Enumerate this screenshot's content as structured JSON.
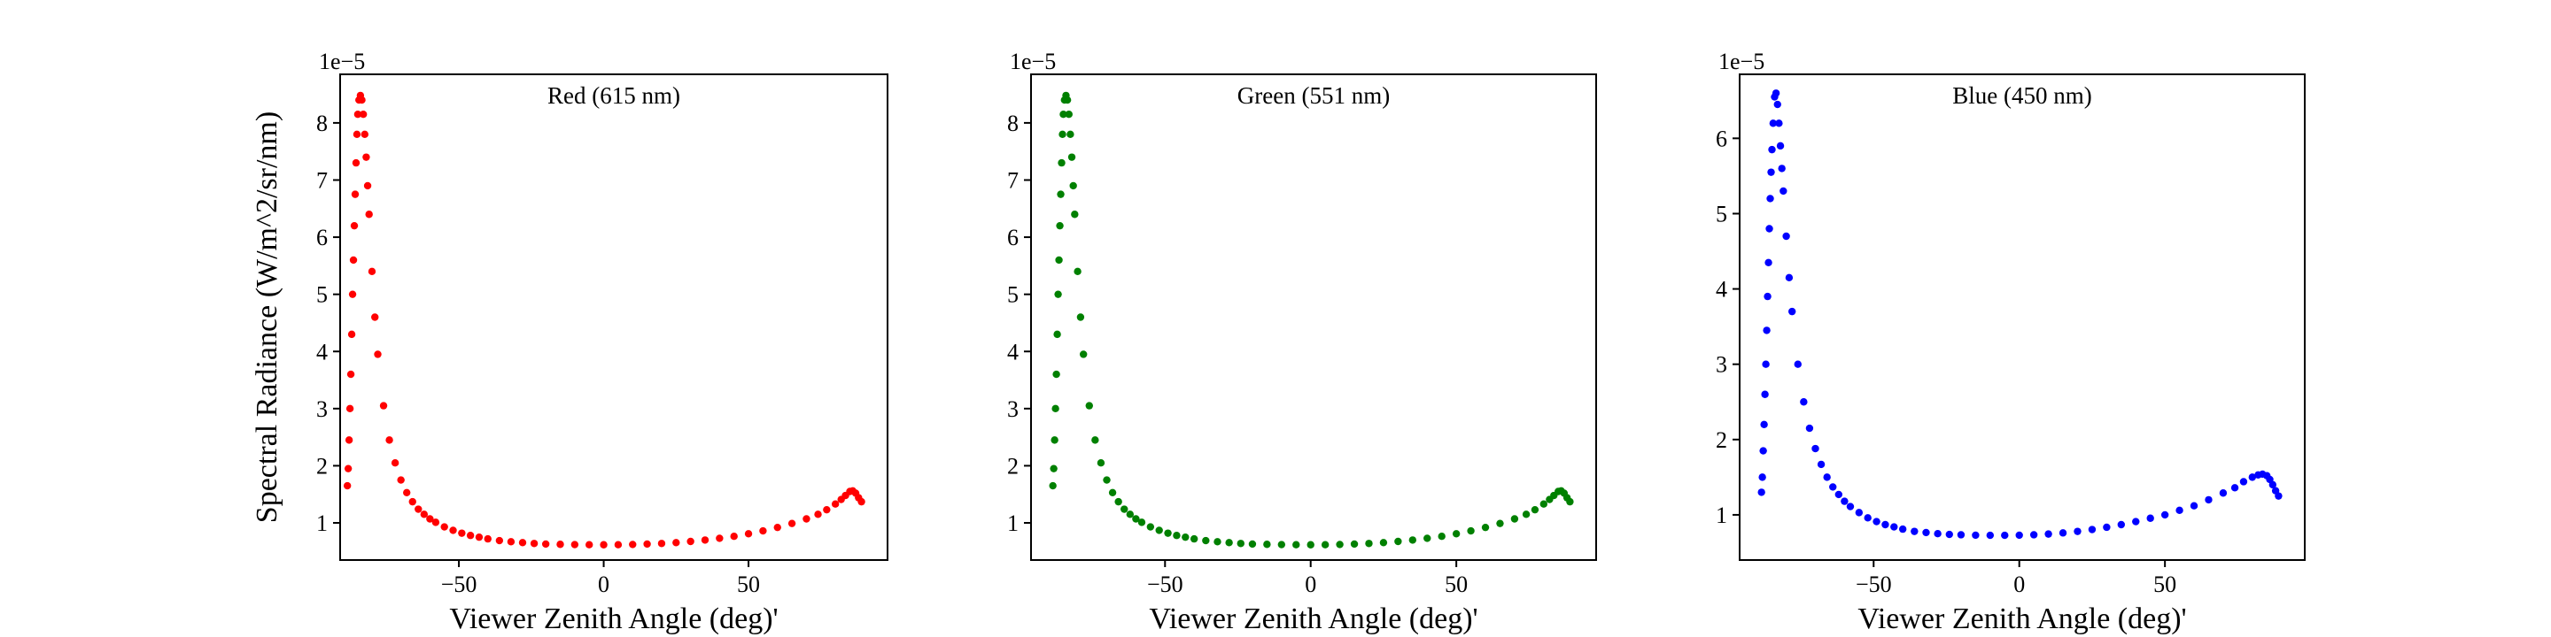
{
  "chart_data": [
    {
      "type": "scatter",
      "title": "Red (615 nm)",
      "xlabel": "Viewer Zenith Angle (deg)'",
      "ylabel": "Spectral Radiance (W/m^2/sr/nm)",
      "y_offset_label": "1e−5",
      "color": "#ff0000",
      "xlim": [
        -91,
        98
      ],
      "ylim": [
        0.35,
        8.85
      ],
      "xticks": [
        -50,
        0,
        50
      ],
      "xtick_labels": [
        "−50",
        "0",
        "50"
      ],
      "yticks": [
        1,
        2,
        3,
        4,
        5,
        6,
        7,
        8
      ],
      "ytick_labels": [
        "1",
        "2",
        "3",
        "4",
        "5",
        "6",
        "7",
        "8"
      ],
      "series": [
        {
          "x": [
            -88.5,
            -88.2,
            -87.9,
            -87.6,
            -87.3,
            -87.0,
            -86.7,
            -86.4,
            -86.1,
            -85.8,
            -85.5,
            -85.2,
            -84.9,
            -84.5,
            -84.0,
            -83.5,
            -83.0,
            -82.5,
            -82.0,
            -81.5,
            -81.0,
            -80.0,
            -79.0,
            -78.0,
            -76.0,
            -74.0,
            -72.0,
            -70.0,
            -68.0,
            -66.0,
            -64.0,
            -62.0,
            -60.0,
            -58.0,
            -55.0,
            -52.0,
            -49.0,
            -46.0,
            -43.0,
            -40.0,
            -36.0,
            -32.0,
            -28.0,
            -24.0,
            -20.0,
            -15.0,
            -10.0,
            -5.0,
            0.0,
            5.0,
            10.0,
            15.0,
            20.0,
            25.0,
            30.0,
            35.0,
            40.0,
            45.0,
            50.0,
            55.0,
            60.0,
            65.0,
            70.0,
            74.0,
            77.0,
            80.0,
            82.0,
            83.5,
            85.0,
            86.0,
            87.0,
            88.0,
            89.0
          ],
          "y": [
            1.65,
            1.95,
            2.45,
            3.0,
            3.6,
            4.3,
            5.0,
            5.6,
            6.2,
            6.75,
            7.3,
            7.8,
            8.15,
            8.4,
            8.48,
            8.4,
            8.15,
            7.8,
            7.4,
            6.9,
            6.4,
            5.4,
            4.6,
            3.95,
            3.05,
            2.45,
            2.05,
            1.75,
            1.53,
            1.37,
            1.24,
            1.15,
            1.07,
            1.01,
            0.93,
            0.87,
            0.82,
            0.78,
            0.75,
            0.72,
            0.69,
            0.67,
            0.655,
            0.64,
            0.63,
            0.625,
            0.62,
            0.618,
            0.617,
            0.618,
            0.622,
            0.63,
            0.64,
            0.655,
            0.675,
            0.7,
            0.73,
            0.765,
            0.81,
            0.86,
            0.92,
            0.99,
            1.07,
            1.15,
            1.23,
            1.33,
            1.41,
            1.48,
            1.55,
            1.56,
            1.52,
            1.44,
            1.37
          ]
        }
      ]
    },
    {
      "type": "scatter",
      "title": "Green (551 nm)",
      "xlabel": "Viewer Zenith Angle (deg)'",
      "ylabel": "",
      "y_offset_label": "1e−5",
      "color": "#008000",
      "xlim": [
        -96,
        98
      ],
      "ylim": [
        0.35,
        8.85
      ],
      "xticks": [
        -50,
        0,
        50
      ],
      "xtick_labels": [
        "−50",
        "0",
        "50"
      ],
      "yticks": [
        1,
        2,
        3,
        4,
        5,
        6,
        7,
        8
      ],
      "ytick_labels": [
        "1",
        "2",
        "3",
        "4",
        "5",
        "6",
        "7",
        "8"
      ],
      "series": [
        {
          "x": [
            -88.5,
            -88.2,
            -87.9,
            -87.6,
            -87.3,
            -87.0,
            -86.7,
            -86.4,
            -86.1,
            -85.8,
            -85.5,
            -85.2,
            -84.9,
            -84.5,
            -84.0,
            -83.5,
            -83.0,
            -82.5,
            -82.0,
            -81.5,
            -81.0,
            -80.0,
            -79.0,
            -78.0,
            -76.0,
            -74.0,
            -72.0,
            -70.0,
            -68.0,
            -66.0,
            -64.0,
            -62.0,
            -60.0,
            -58.0,
            -55.0,
            -52.0,
            -49.0,
            -46.0,
            -43.0,
            -40.0,
            -36.0,
            -32.0,
            -28.0,
            -24.0,
            -20.0,
            -15.0,
            -10.0,
            -5.0,
            0.0,
            5.0,
            10.0,
            15.0,
            20.0,
            25.0,
            30.0,
            35.0,
            40.0,
            45.0,
            50.0,
            55.0,
            60.0,
            65.0,
            70.0,
            74.0,
            77.0,
            80.0,
            82.0,
            83.5,
            85.0,
            86.0,
            87.0,
            88.0,
            89.0
          ],
          "y": [
            1.65,
            1.95,
            2.45,
            3.0,
            3.6,
            4.3,
            5.0,
            5.6,
            6.2,
            6.75,
            7.3,
            7.8,
            8.15,
            8.4,
            8.48,
            8.4,
            8.15,
            7.8,
            7.4,
            6.9,
            6.4,
            5.4,
            4.6,
            3.95,
            3.05,
            2.45,
            2.05,
            1.75,
            1.53,
            1.37,
            1.24,
            1.15,
            1.07,
            1.01,
            0.93,
            0.87,
            0.82,
            0.78,
            0.75,
            0.72,
            0.69,
            0.67,
            0.655,
            0.64,
            0.63,
            0.625,
            0.62,
            0.618,
            0.617,
            0.618,
            0.622,
            0.63,
            0.64,
            0.655,
            0.675,
            0.7,
            0.73,
            0.765,
            0.81,
            0.86,
            0.92,
            0.99,
            1.07,
            1.15,
            1.23,
            1.33,
            1.41,
            1.48,
            1.55,
            1.56,
            1.52,
            1.44,
            1.37
          ]
        }
      ]
    },
    {
      "type": "scatter",
      "title": "Blue (450 nm)",
      "xlabel": "Viewer Zenith Angle (deg)'",
      "ylabel": "",
      "y_offset_label": "1e−5",
      "color": "#0000ff",
      "xlim": [
        -96,
        98
      ],
      "ylim": [
        0.4,
        6.85
      ],
      "xticks": [
        -50,
        0,
        50
      ],
      "xtick_labels": [
        "−50",
        "0",
        "50"
      ],
      "yticks": [
        1,
        2,
        3,
        4,
        5,
        6
      ],
      "ytick_labels": [
        "1",
        "2",
        "3",
        "4",
        "5",
        "6"
      ],
      "series": [
        {
          "x": [
            -88.5,
            -88.2,
            -87.9,
            -87.6,
            -87.3,
            -87.0,
            -86.7,
            -86.4,
            -86.1,
            -85.8,
            -85.5,
            -85.2,
            -84.9,
            -84.5,
            -84.0,
            -83.5,
            -83.0,
            -82.5,
            -82.0,
            -81.5,
            -81.0,
            -80.0,
            -79.0,
            -78.0,
            -76.0,
            -74.0,
            -72.0,
            -70.0,
            -68.0,
            -66.0,
            -64.0,
            -62.0,
            -60.0,
            -58.0,
            -55.0,
            -52.0,
            -49.0,
            -46.0,
            -43.0,
            -40.0,
            -36.0,
            -32.0,
            -28.0,
            -24.0,
            -20.0,
            -15.0,
            -10.0,
            -5.0,
            0.0,
            5.0,
            10.0,
            15.0,
            20.0,
            25.0,
            30.0,
            35.0,
            40.0,
            45.0,
            50.0,
            55.0,
            60.0,
            65.0,
            70.0,
            74.0,
            77.0,
            80.0,
            82.0,
            83.5,
            85.0,
            86.0,
            87.0,
            88.0,
            89.0
          ],
          "y": [
            1.3,
            1.5,
            1.85,
            2.2,
            2.6,
            3.0,
            3.45,
            3.9,
            4.35,
            4.8,
            5.2,
            5.55,
            5.85,
            6.2,
            6.55,
            6.6,
            6.45,
            6.2,
            5.9,
            5.6,
            5.3,
            4.7,
            4.15,
            3.7,
            3.0,
            2.5,
            2.15,
            1.88,
            1.67,
            1.5,
            1.37,
            1.27,
            1.18,
            1.11,
            1.03,
            0.96,
            0.91,
            0.87,
            0.84,
            0.81,
            0.78,
            0.765,
            0.75,
            0.74,
            0.735,
            0.73,
            0.728,
            0.728,
            0.73,
            0.735,
            0.745,
            0.76,
            0.78,
            0.805,
            0.835,
            0.87,
            0.91,
            0.955,
            1.0,
            1.06,
            1.12,
            1.2,
            1.29,
            1.36,
            1.44,
            1.5,
            1.53,
            1.54,
            1.52,
            1.47,
            1.4,
            1.32,
            1.25
          ]
        }
      ]
    }
  ]
}
